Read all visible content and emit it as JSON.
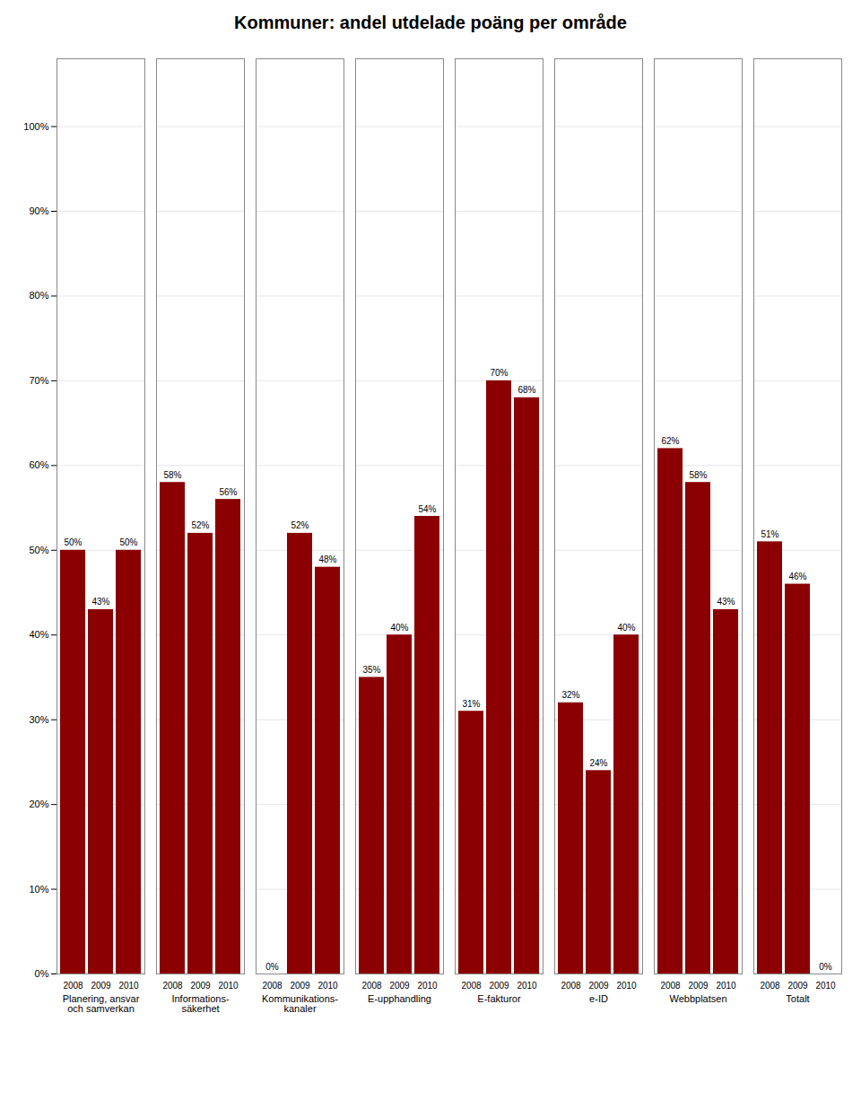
{
  "chart_data": {
    "type": "bar",
    "title": "Kommuner: andel utdelade poäng per område",
    "categories": [
      "Planering, ansvar\noch samverkan",
      "Informations-\nsäkerhet",
      "Kommunikations-\nkanaler",
      "E-upphandling",
      "E-fakturor",
      "e-ID",
      "Webbplatsen",
      "Totalt"
    ],
    "series": [
      {
        "name": "2008",
        "color": "#8B0000",
        "values": [
          50,
          58,
          0,
          35,
          31,
          32,
          62,
          51
        ],
        "value_labels": [
          "50%",
          "58%",
          "0%",
          "35%",
          "31%",
          "32%",
          "62%",
          "51%"
        ]
      },
      {
        "name": "2009",
        "color": "#8B0000",
        "values": [
          43,
          52,
          52,
          40,
          70,
          24,
          58,
          46
        ],
        "value_labels": [
          "43%",
          "52%",
          "52%",
          "40%",
          "70%",
          "24%",
          "58%",
          "46%"
        ]
      },
      {
        "name": "2010",
        "color": "#8B0000",
        "values": [
          50,
          56,
          48,
          54,
          68,
          40,
          43,
          0
        ],
        "value_labels": [
          "50%",
          "56%",
          "48%",
          "54%",
          "68%",
          "40%",
          "43%",
          "0%"
        ]
      }
    ],
    "ylim": [
      0,
      108
    ],
    "yticks": [
      {
        "value": 0,
        "label": "0%"
      },
      {
        "value": 10,
        "label": "10%"
      },
      {
        "value": 20,
        "label": "20%"
      },
      {
        "value": 30,
        "label": "30%"
      },
      {
        "value": 40,
        "label": "40%"
      },
      {
        "value": 50,
        "label": "50%"
      },
      {
        "value": 60,
        "label": "60%"
      },
      {
        "value": 70,
        "label": "70%"
      },
      {
        "value": 80,
        "label": "80%"
      },
      {
        "value": 90,
        "label": "90%"
      },
      {
        "value": 100,
        "label": "100%"
      }
    ],
    "grid": true,
    "data_labels": true
  }
}
